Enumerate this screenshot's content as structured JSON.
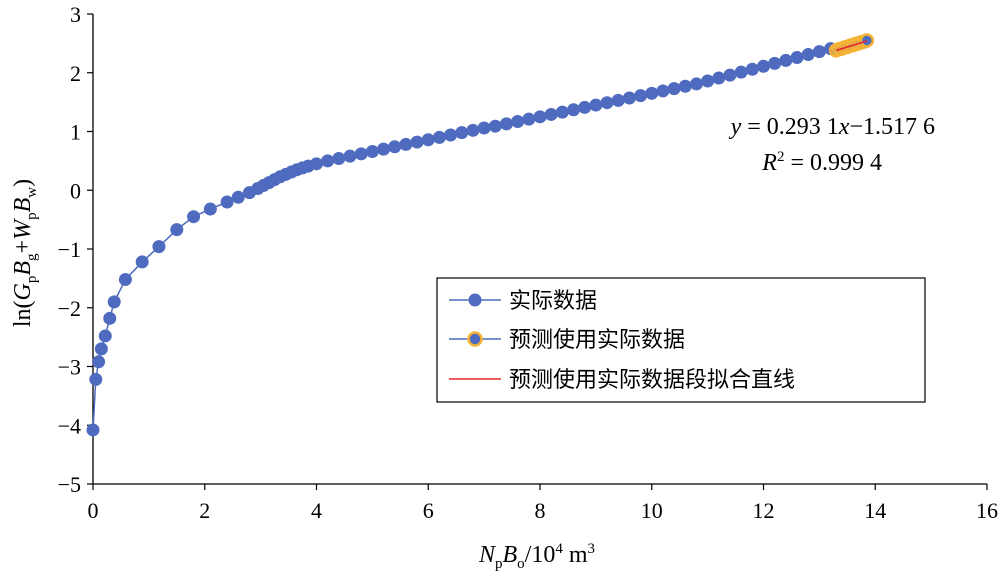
{
  "chart_data": {
    "type": "scatter",
    "xlim": [
      0,
      16
    ],
    "ylim": [
      -5,
      3
    ],
    "xticks": [
      "0",
      "2",
      "4",
      "6",
      "8",
      "10",
      "12",
      "14",
      "16"
    ],
    "yticks": [
      "−5",
      "−4",
      "−3",
      "−2",
      "−1",
      "0",
      "1",
      "2",
      "3"
    ],
    "grid": false,
    "legend_position": "center-right",
    "colors": {
      "actual": "#4f6bbf",
      "pred_fill": "#4f6bbf",
      "pred_edge": "#f5b335",
      "fit": "#e8262b",
      "axis": "#000000"
    },
    "xlabel": {
      "p1": "N",
      "s1": "p",
      "p2": "B",
      "s2": "o",
      "p3": "/10",
      "sup": "4",
      "p4": " m",
      "sup2": "3"
    },
    "ylabel": {
      "pre": "ln(",
      "v1": "G",
      "s1": "p",
      "v2": "B",
      "s2": "g",
      "plus": "+",
      "v3": "W",
      "s3": "p",
      "v4": "B",
      "s4": "w",
      "post": ")"
    },
    "equation": {
      "line1": {
        "y": "y",
        "mid": " = 0.293 1",
        "x": "x",
        "end": "−1.517 6"
      },
      "line2": {
        "r": "R",
        "sup": "2",
        "end": " = 0.999 4"
      }
    },
    "series": [
      {
        "name": "实际数据",
        "x": [
          0.0,
          0.05,
          0.1,
          0.15,
          0.22,
          0.3,
          0.38,
          0.58,
          0.88,
          1.18,
          1.5,
          1.8,
          2.1,
          2.4,
          2.6,
          2.8,
          2.95,
          3.05,
          3.15,
          3.25,
          3.35,
          3.45,
          3.55,
          3.65,
          3.75,
          3.85,
          4.0,
          4.2,
          4.4,
          4.6,
          4.8,
          5.0,
          5.2,
          5.4,
          5.6,
          5.8,
          6.0,
          6.2,
          6.4,
          6.6,
          6.8,
          7.0,
          7.2,
          7.4,
          7.6,
          7.8,
          8.0,
          8.2,
          8.4,
          8.6,
          8.8,
          9.0,
          9.2,
          9.4,
          9.6,
          9.8,
          10.0,
          10.2,
          10.4,
          10.6,
          10.8,
          11.0,
          11.2,
          11.4,
          11.6,
          11.8,
          12.0,
          12.2,
          12.4,
          12.6,
          12.8,
          13.0,
          13.2
        ],
        "y": [
          -4.08,
          -3.22,
          -2.92,
          -2.7,
          -2.48,
          -2.18,
          -1.9,
          -1.52,
          -1.22,
          -0.96,
          -0.67,
          -0.45,
          -0.32,
          -0.2,
          -0.12,
          -0.04,
          0.03,
          0.08,
          0.13,
          0.18,
          0.23,
          0.27,
          0.31,
          0.35,
          0.38,
          0.41,
          0.45,
          0.5,
          0.54,
          0.58,
          0.62,
          0.66,
          0.7,
          0.74,
          0.78,
          0.82,
          0.86,
          0.9,
          0.94,
          0.98,
          1.02,
          1.06,
          1.09,
          1.13,
          1.17,
          1.21,
          1.25,
          1.29,
          1.33,
          1.37,
          1.41,
          1.45,
          1.49,
          1.53,
          1.57,
          1.61,
          1.65,
          1.69,
          1.73,
          1.77,
          1.81,
          1.86,
          1.91,
          1.96,
          2.01,
          2.06,
          2.11,
          2.16,
          2.21,
          2.26,
          2.31,
          2.36,
          2.41
        ]
      },
      {
        "name": "预测使用实际数据",
        "x": [
          13.3,
          13.35,
          13.4,
          13.45,
          13.5,
          13.55,
          13.6,
          13.65,
          13.7,
          13.75,
          13.8,
          13.85
        ],
        "y": [
          2.38,
          2.4,
          2.41,
          2.43,
          2.44,
          2.46,
          2.47,
          2.49,
          2.5,
          2.52,
          2.53,
          2.55
        ]
      },
      {
        "name": "预测使用实际数据段拟合直线",
        "x": [
          13.3,
          13.85
        ],
        "y": [
          2.38,
          2.54
        ]
      }
    ]
  }
}
